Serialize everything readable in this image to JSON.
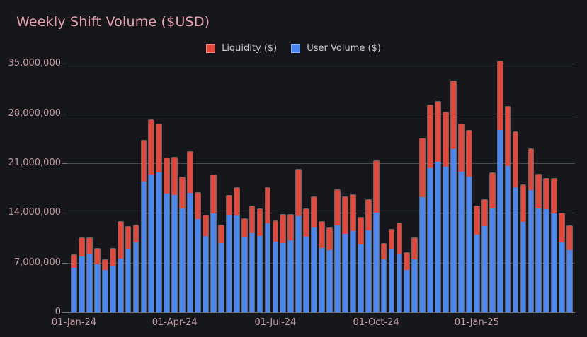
{
  "page": {
    "background": "#16171b"
  },
  "chart_data": {
    "type": "bar",
    "stacked": true,
    "title": "Weekly Shift Volume ($USD)",
    "title_color": "#e9a0af",
    "grid": true,
    "legend_position": "top-center",
    "legend": [
      {
        "label": "Liquidity ($)",
        "color": "#e3483b"
      },
      {
        "label": "User Volume ($)",
        "color": "#4a87f0"
      }
    ],
    "x_axis": {
      "tick_labels": [
        "01-Jan-24",
        "01-Apr-24",
        "01-Jul-24",
        "01-Oct-24",
        "01-Jan-25"
      ],
      "tick_bar_indices": [
        0,
        13,
        26,
        39,
        52
      ]
    },
    "y_axis": {
      "ticks": [
        0,
        7000000,
        14000000,
        21000000,
        28000000,
        35000000
      ],
      "tick_labels": [
        "0",
        "7,000,000",
        "14,000,000",
        "21,000,000",
        "28,000,000",
        "35,000,000"
      ],
      "min": 0,
      "max": 35800000
    },
    "series": [
      {
        "name": "User Volume ($)",
        "color": "#4a87f0",
        "stack_order": "bottom",
        "values": [
          6300000,
          7900000,
          8200000,
          6800000,
          6000000,
          6600000,
          7600000,
          9000000,
          9900000,
          18500000,
          19500000,
          19800000,
          16800000,
          16600000,
          14700000,
          16900000,
          13200000,
          10800000,
          14000000,
          9800000,
          13800000,
          13700000,
          10600000,
          11200000,
          10800000,
          12600000,
          10000000,
          9800000,
          10200000,
          13600000,
          10700000,
          12000000,
          9100000,
          8800000,
          12300000,
          11100000,
          11500000,
          9600000,
          11600000,
          14100000,
          7500000,
          9000000,
          8200000,
          6000000,
          7500000,
          16300000,
          20400000,
          21300000,
          20600000,
          23100000,
          19900000,
          19200000,
          11000000,
          12200000,
          14700000,
          25700000,
          20700000,
          17700000,
          12800000,
          17300000,
          14700000,
          14600000,
          14000000,
          9900000,
          8800000
        ]
      },
      {
        "name": "Liquidity ($)",
        "color": "#e3483b",
        "stack_order": "top",
        "values": [
          1900000,
          2600000,
          2300000,
          2300000,
          1500000,
          2500000,
          5200000,
          3100000,
          2400000,
          5800000,
          7700000,
          6800000,
          5000000,
          5300000,
          4400000,
          5800000,
          3700000,
          2900000,
          5400000,
          2500000,
          2700000,
          3900000,
          2600000,
          3800000,
          3800000,
          5000000,
          2900000,
          4000000,
          3600000,
          6600000,
          3900000,
          4300000,
          3700000,
          3100000,
          5000000,
          5200000,
          5100000,
          3800000,
          4300000,
          7300000,
          2300000,
          2700000,
          4400000,
          2500000,
          3000000,
          8300000,
          8900000,
          8500000,
          7700000,
          9500000,
          6700000,
          6500000,
          4000000,
          3700000,
          5000000,
          9700000,
          8400000,
          7800000,
          5200000,
          5800000,
          4800000,
          4300000,
          4900000,
          4100000,
          3400000
        ]
      }
    ]
  },
  "colors": {
    "background": "#16171b",
    "gridline": "#45484d",
    "axis_line": "#6e7175",
    "tick_label": "#c49ba3",
    "legend_text": "#c9c9ce",
    "bar_border": "#abadb1"
  }
}
